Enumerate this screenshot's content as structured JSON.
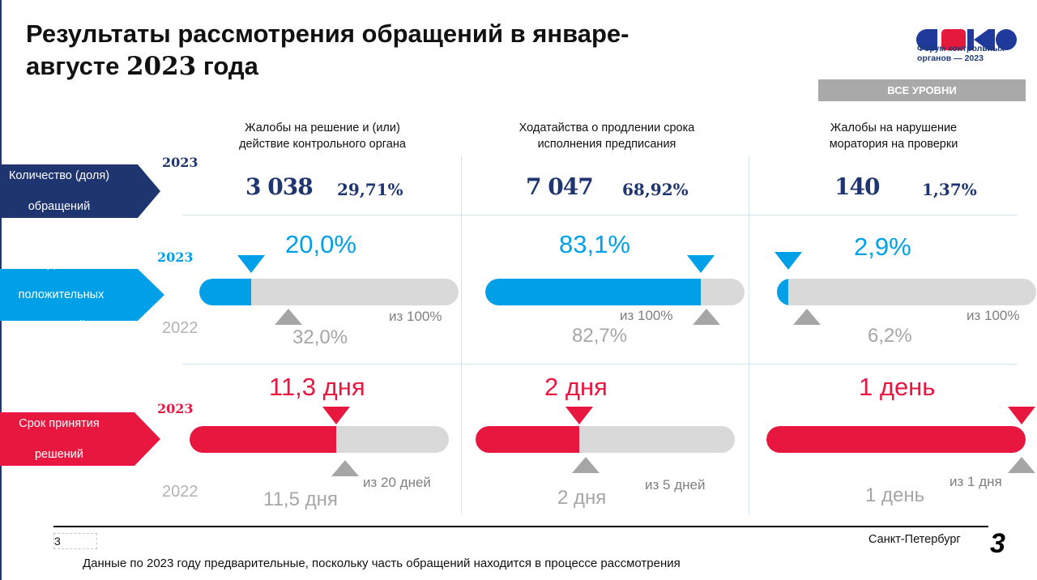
{
  "title": {
    "line1": "Результаты рассмотрения обращений в январе-",
    "line2_prefix": "августе ",
    "line2_year": "2023",
    "line2_suffix": " года"
  },
  "logo": {
    "letters": "ФКО",
    "caption_line1": "Форум контрольных",
    "caption_line2": "органов — 2023",
    "colors": [
      "#1f3a9a",
      "#e4193c",
      "#1f3a9a"
    ]
  },
  "level_badge": "ВСЕ УРОВНИ",
  "columns": [
    {
      "header_line1": "Жалобы на решение и (или)",
      "header_line2": "действие контрольного органа"
    },
    {
      "header_line1": "Ходатайства о продлении срока",
      "header_line2": "исполнения предписания"
    },
    {
      "header_line1": "Жалобы на нарушение",
      "header_line2": "моратория на проверки"
    }
  ],
  "rows": {
    "count": {
      "label_line1": "Количество (доля)",
      "label_line2": "обращений",
      "color": "#1f3570",
      "year": "2023",
      "cells": [
        {
          "value": "3 038",
          "share": "29,71%"
        },
        {
          "value": "7 047",
          "share": "68,92%"
        },
        {
          "value": "140",
          "share": "1,37%"
        }
      ]
    },
    "positive": {
      "label_line1": "Доля",
      "label_line2": "положительных",
      "label_line3": "решений",
      "color": "#00a0e9",
      "year_current": "2023",
      "year_previous": "2022",
      "cells": [
        {
          "current": "20,0%",
          "current_fraction": 0.2,
          "previous": "32,0%",
          "previous_fraction": 0.32,
          "of": "из 100%"
        },
        {
          "current": "83,1%",
          "current_fraction": 0.831,
          "previous": "82,7%",
          "previous_fraction": 0.827,
          "of": "из 100%"
        },
        {
          "current": "2,9%",
          "current_fraction": 0.029,
          "previous": "6,2%",
          "previous_fraction": 0.062,
          "of": "из 100%"
        }
      ]
    },
    "term": {
      "label_line1": "Срок принятия",
      "label_line2": "решений",
      "color": "#e8173f",
      "year_current": "2023",
      "year_previous": "2022",
      "cells": [
        {
          "current": "11,3 дня",
          "current_fraction": 0.565,
          "previous": "11,5 дня",
          "previous_fraction": 0.575,
          "of": "из 20 дней"
        },
        {
          "current": "2 дня",
          "current_fraction": 0.4,
          "previous": "2 дня",
          "previous_fraction": 0.4,
          "of": "из 5 дней"
        },
        {
          "current": "1 день",
          "current_fraction": 1.0,
          "previous": "1 день",
          "previous_fraction": 1.0,
          "of": "из 1 дня"
        }
      ]
    }
  },
  "footer": {
    "page_small": "3",
    "city": "Санкт-Петербург",
    "page_big": "3",
    "note": "Данные по 2023 году предварительные, поскольку часть обращений находится в процессе рассмотрения"
  }
}
